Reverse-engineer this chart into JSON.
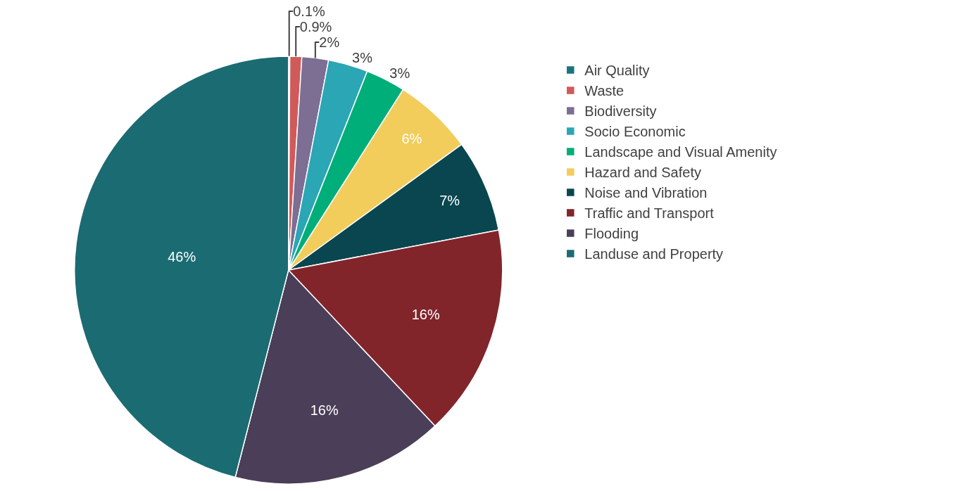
{
  "chart_data": {
    "type": "pie",
    "categories": [
      "Air Quality",
      "Waste",
      "Biodiversity",
      "Socio Economic",
      "Landscape and Visual Amenity",
      "Hazard and Safety",
      "Noise and Vibration",
      "Traffic and Transport",
      "Flooding",
      "Landuse and Property"
    ],
    "values": [
      0.1,
      0.9,
      2,
      3,
      3,
      6,
      7,
      16,
      16,
      46
    ],
    "value_labels": [
      "0.1%",
      "0.9%",
      "2%",
      "3%",
      "3%",
      "6%",
      "7%",
      "16%",
      "16%",
      "46%"
    ],
    "colors": [
      "#1a7480",
      "#d05a5a",
      "#7d6e94",
      "#2aa6b5",
      "#00ae7a",
      "#f2cd5c",
      "#0a4650",
      "#82252b",
      "#4b3e58",
      "#1b6b72"
    ],
    "legend": "top right"
  }
}
